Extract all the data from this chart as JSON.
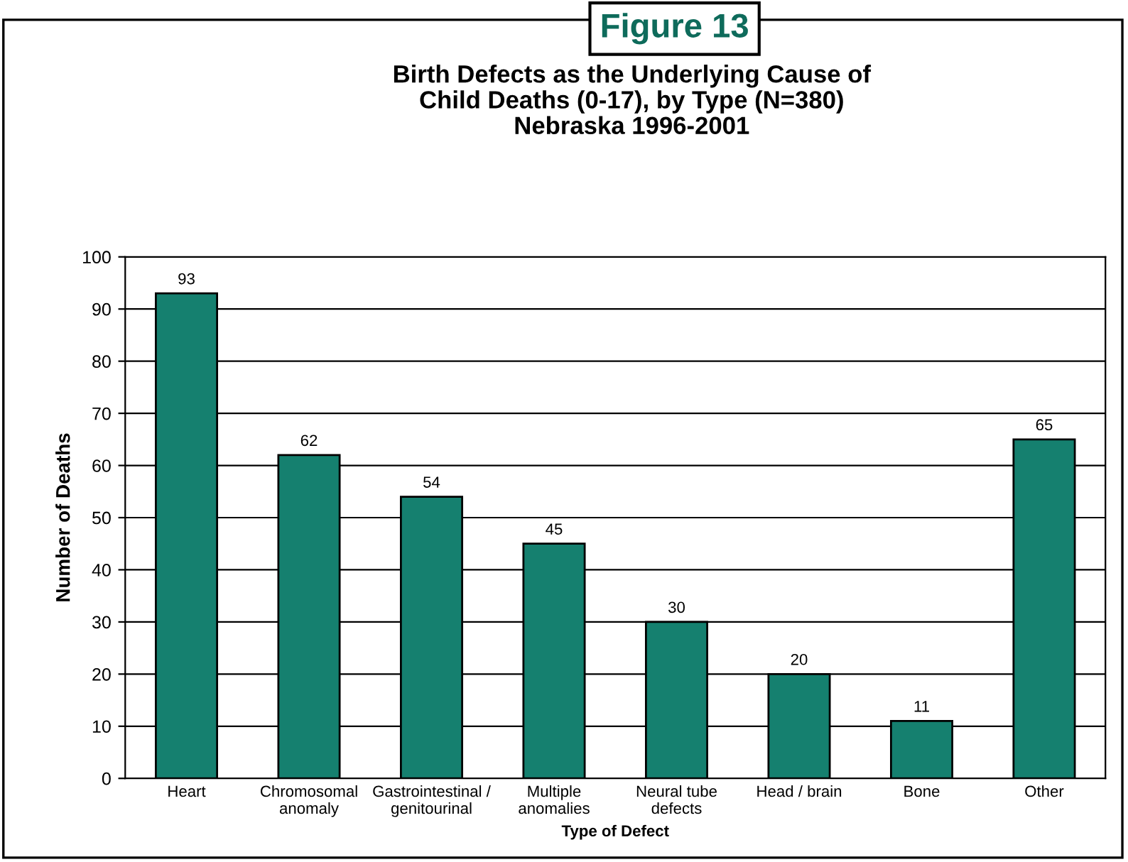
{
  "chart_data": {
    "type": "bar",
    "title": "Birth Defects as the Underlying Cause of\nChild Deaths (0-17), by Type (N=380)\nNebraska 1996-2001",
    "xlabel": "Type of Defect",
    "ylabel": "Number of Deaths",
    "annotations": [
      "Figure 13"
    ],
    "categories": [
      "Heart",
      "Chromosomal\nanomaly",
      "Gastrointestinal /\ngenitourinal",
      "Multiple\nanomalies",
      "Neural tube\ndefects",
      "Head / brain",
      "Bone",
      "Other"
    ],
    "values": [
      93,
      62,
      54,
      45,
      30,
      20,
      11,
      65
    ],
    "color": "#15806f",
    "ylim": [
      0,
      100
    ],
    "yticks": [
      0,
      10,
      20,
      30,
      40,
      50,
      60,
      70,
      80,
      90,
      100
    ],
    "grid": "y",
    "data_labels": true,
    "legend": false
  }
}
